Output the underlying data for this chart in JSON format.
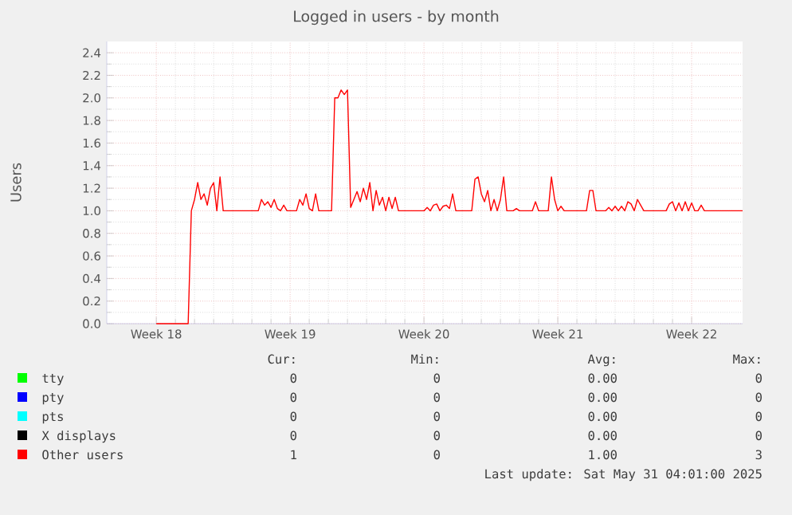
{
  "chart_data": {
    "type": "line",
    "title": "Logged in users - by month",
    "ylabel": "Users",
    "categories": [
      "Week 18",
      null,
      null,
      null,
      null,
      null,
      null,
      null,
      null,
      null,
      null,
      null,
      null,
      null,
      null,
      null,
      null,
      null,
      null,
      null,
      null,
      null,
      null,
      null,
      null,
      null,
      null,
      null,
      null,
      null,
      null,
      null,
      null,
      null,
      null,
      null,
      null,
      null,
      null,
      null,
      null,
      null,
      "Week 19",
      null,
      null,
      null,
      null,
      null,
      null,
      null,
      null,
      null,
      null,
      null,
      null,
      null,
      null,
      null,
      null,
      null,
      null,
      null,
      null,
      null,
      null,
      null,
      null,
      null,
      null,
      null,
      null,
      null,
      null,
      null,
      null,
      null,
      null,
      null,
      null,
      null,
      null,
      null,
      null,
      null,
      "Week 20",
      null,
      null,
      null,
      null,
      null,
      null,
      null,
      null,
      null,
      null,
      null,
      null,
      null,
      null,
      null,
      null,
      null,
      null,
      null,
      null,
      null,
      null,
      null,
      null,
      null,
      null,
      null,
      null,
      null,
      null,
      null,
      null,
      null,
      null,
      null,
      null,
      null,
      null,
      null,
      null,
      null,
      "Week 21",
      null,
      null,
      null,
      null,
      null,
      null,
      null,
      null,
      null,
      null,
      null,
      null,
      null,
      null,
      null,
      null,
      null,
      null,
      null,
      null,
      null,
      null,
      null,
      null,
      null,
      null,
      null,
      null,
      null,
      null,
      null,
      null,
      null,
      null,
      null,
      null,
      null,
      null,
      null,
      null,
      null,
      "Week 22",
      null,
      null,
      null,
      null,
      null,
      null,
      null,
      null,
      null,
      null,
      null,
      null,
      null,
      null,
      null,
      null
    ],
    "ylim": [
      0,
      2.5
    ],
    "yticks": [
      {
        "value": 0,
        "label": "0.0"
      },
      {
        "value": 0.2,
        "label": "0.2"
      },
      {
        "value": 0.4,
        "label": "0.4"
      },
      {
        "value": 0.6,
        "label": "0.6"
      },
      {
        "value": 0.8,
        "label": "0.8"
      },
      {
        "value": 1.0,
        "label": "1.0"
      },
      {
        "value": 1.2,
        "label": "1.2"
      },
      {
        "value": 1.4,
        "label": "1.4"
      },
      {
        "value": 1.6,
        "label": "1.6"
      },
      {
        "value": 1.8,
        "label": "1.8"
      },
      {
        "value": 2.0,
        "label": "2.0"
      },
      {
        "value": 2.2,
        "label": "2.2"
      },
      {
        "value": 2.4,
        "label": "2.4"
      }
    ],
    "grid": true,
    "legend": "bottom",
    "marker": "none",
    "line_style": "solid",
    "series": [
      {
        "name": "tty",
        "color": "#00ff00",
        "values": [
          null,
          null,
          null,
          null,
          null,
          null,
          null,
          null,
          null,
          null,
          null,
          null,
          null,
          null,
          null,
          null,
          null,
          null,
          null,
          null,
          null,
          null,
          null,
          null,
          null,
          null,
          null,
          null,
          null,
          null,
          null,
          null,
          null,
          null,
          null,
          null,
          null,
          null,
          null,
          null,
          null,
          null,
          null,
          null,
          null,
          null,
          null,
          null,
          null,
          null,
          null,
          null,
          null,
          null,
          null,
          null,
          null,
          null,
          null,
          null,
          null,
          null,
          null,
          null,
          null,
          null,
          null,
          null,
          null,
          null,
          null,
          null,
          null,
          null,
          null,
          null,
          null,
          null,
          null,
          null,
          null,
          null,
          null,
          null,
          null,
          null,
          null,
          null,
          null,
          null,
          null,
          null,
          null,
          null,
          null,
          null,
          null,
          null,
          null,
          null,
          null,
          null,
          null,
          null,
          null,
          null,
          null,
          null,
          null,
          null,
          null,
          null,
          null,
          null,
          null,
          null,
          null,
          null,
          null,
          null,
          null,
          null,
          null,
          null,
          null,
          null,
          null,
          null,
          null,
          null,
          null,
          null,
          null,
          null,
          null,
          null,
          null,
          null,
          null,
          null,
          null,
          null,
          null,
          null,
          null,
          null,
          null,
          null,
          null,
          null,
          null,
          null,
          null,
          null,
          null,
          null,
          null,
          null,
          null,
          null,
          null,
          null,
          null,
          null,
          null,
          null,
          null,
          null,
          null,
          null,
          null,
          null,
          null,
          null,
          null,
          null,
          null,
          null,
          null,
          null,
          null,
          null,
          null,
          null,
          null
        ]
      },
      {
        "name": "pty",
        "color": "#0000ff",
        "values": [
          null,
          null,
          null,
          null,
          null,
          null,
          null,
          null,
          null,
          null,
          null,
          null,
          null,
          null,
          null,
          null,
          null,
          null,
          null,
          null,
          null,
          null,
          null,
          null,
          null,
          null,
          null,
          null,
          null,
          null,
          null,
          null,
          null,
          null,
          null,
          null,
          null,
          null,
          null,
          null,
          null,
          null,
          null,
          null,
          null,
          null,
          null,
          null,
          null,
          null,
          null,
          null,
          null,
          null,
          null,
          null,
          null,
          null,
          null,
          null,
          null,
          null,
          null,
          null,
          null,
          null,
          null,
          null,
          null,
          null,
          null,
          null,
          null,
          null,
          null,
          null,
          null,
          null,
          null,
          null,
          null,
          null,
          null,
          null,
          null,
          null,
          null,
          null,
          null,
          null,
          null,
          null,
          null,
          null,
          null,
          null,
          null,
          null,
          null,
          null,
          null,
          null,
          null,
          null,
          null,
          null,
          null,
          null,
          null,
          null,
          null,
          null,
          null,
          null,
          null,
          null,
          null,
          null,
          null,
          null,
          null,
          null,
          null,
          null,
          null,
          null,
          null,
          null,
          null,
          null,
          null,
          null,
          null,
          null,
          null,
          null,
          null,
          null,
          null,
          null,
          null,
          null,
          null,
          null,
          null,
          null,
          null,
          null,
          null,
          null,
          null,
          null,
          null,
          null,
          null,
          null,
          null,
          null,
          null,
          null,
          null,
          null,
          null,
          null,
          null,
          null,
          null,
          null,
          null,
          null,
          null,
          null,
          null,
          null,
          null,
          null,
          null,
          null,
          null,
          null,
          null,
          null,
          null,
          null,
          null
        ]
      },
      {
        "name": "pts",
        "color": "#00ffff",
        "values": [
          null,
          null,
          null,
          null,
          null,
          null,
          null,
          null,
          null,
          null,
          null,
          null,
          null,
          null,
          null,
          null,
          null,
          null,
          null,
          null,
          null,
          null,
          null,
          null,
          null,
          null,
          null,
          null,
          null,
          null,
          null,
          null,
          null,
          null,
          null,
          null,
          null,
          null,
          null,
          null,
          null,
          null,
          null,
          null,
          null,
          null,
          null,
          null,
          null,
          null,
          null,
          null,
          null,
          null,
          null,
          null,
          null,
          null,
          null,
          null,
          null,
          null,
          null,
          null,
          null,
          null,
          null,
          null,
          null,
          null,
          null,
          null,
          null,
          null,
          null,
          null,
          null,
          null,
          null,
          null,
          null,
          null,
          null,
          null,
          null,
          null,
          null,
          null,
          null,
          null,
          null,
          null,
          null,
          null,
          null,
          null,
          null,
          null,
          null,
          null,
          null,
          null,
          null,
          null,
          null,
          null,
          null,
          null,
          null,
          null,
          null,
          null,
          null,
          null,
          null,
          null,
          null,
          null,
          null,
          null,
          null,
          null,
          null,
          null,
          null,
          null,
          null,
          null,
          null,
          null,
          null,
          null,
          null,
          null,
          null,
          null,
          null,
          null,
          null,
          null,
          null,
          null,
          null,
          null,
          null,
          null,
          null,
          null,
          null,
          null,
          null,
          null,
          null,
          null,
          null,
          null,
          null,
          null,
          null,
          null,
          null,
          null,
          null,
          null,
          null,
          null,
          null,
          null,
          null,
          null,
          null,
          null,
          null,
          null,
          null,
          null,
          null,
          null,
          null,
          null,
          null,
          null,
          null,
          null,
          null
        ]
      },
      {
        "name": "X displays",
        "color": "#000000",
        "values": [
          null,
          null,
          null,
          null,
          null,
          null,
          null,
          null,
          null,
          null,
          null,
          null,
          null,
          null,
          null,
          null,
          null,
          null,
          null,
          null,
          null,
          null,
          null,
          null,
          null,
          null,
          null,
          null,
          null,
          null,
          null,
          null,
          null,
          null,
          null,
          null,
          null,
          null,
          null,
          null,
          null,
          null,
          null,
          null,
          null,
          null,
          null,
          null,
          null,
          null,
          null,
          null,
          null,
          null,
          null,
          null,
          null,
          null,
          null,
          null,
          null,
          null,
          null,
          null,
          null,
          null,
          null,
          null,
          null,
          null,
          null,
          null,
          null,
          null,
          null,
          null,
          null,
          null,
          null,
          null,
          null,
          null,
          null,
          null,
          null,
          null,
          null,
          null,
          null,
          null,
          null,
          null,
          null,
          null,
          null,
          null,
          null,
          null,
          null,
          null,
          null,
          null,
          null,
          null,
          null,
          null,
          null,
          null,
          null,
          null,
          null,
          null,
          null,
          null,
          null,
          null,
          null,
          null,
          null,
          null,
          null,
          null,
          null,
          null,
          null,
          null,
          null,
          null,
          null,
          null,
          null,
          null,
          null,
          null,
          null,
          null,
          null,
          null,
          null,
          null,
          null,
          null,
          null,
          null,
          null,
          null,
          null,
          null,
          null,
          null,
          null,
          null,
          null,
          null,
          null,
          null,
          null,
          null,
          null,
          null,
          null,
          null,
          null,
          null,
          null,
          null,
          null,
          null,
          null,
          null,
          null,
          null,
          null,
          null,
          null,
          null,
          null,
          null,
          null,
          null,
          null,
          null,
          null,
          null,
          null
        ]
      },
      {
        "name": "Other users",
        "color": "#ff0000",
        "values": [
          0,
          0,
          0,
          0,
          0,
          0,
          0,
          0,
          0,
          0,
          0,
          1.0,
          1.1,
          1.25,
          1.1,
          1.15,
          1.05,
          1.2,
          1.25,
          1.0,
          1.3,
          1.0,
          1.0,
          1.0,
          1.0,
          1.0,
          1.0,
          1.0,
          1.0,
          1.0,
          1.0,
          1.0,
          1.0,
          1.1,
          1.05,
          1.08,
          1.03,
          1.1,
          1.02,
          1.0,
          1.05,
          1.0,
          1.0,
          1.0,
          1.0,
          1.1,
          1.05,
          1.15,
          1.02,
          1.0,
          1.15,
          1.0,
          1.0,
          1.0,
          1.0,
          1.0,
          2.0,
          2.0,
          2.07,
          2.03,
          2.07,
          1.03,
          1.1,
          1.17,
          1.08,
          1.2,
          1.1,
          1.25,
          1.0,
          1.18,
          1.05,
          1.12,
          1.0,
          1.12,
          1.02,
          1.12,
          1.0,
          1.0,
          1.0,
          1.0,
          1.0,
          1.0,
          1.0,
          1.0,
          1.0,
          1.03,
          1.0,
          1.05,
          1.06,
          1.0,
          1.04,
          1.05,
          1.02,
          1.15,
          1.0,
          1.0,
          1.0,
          1.0,
          1.0,
          1.0,
          1.28,
          1.3,
          1.15,
          1.08,
          1.18,
          1.0,
          1.1,
          1.0,
          1.1,
          1.3,
          1.0,
          1.0,
          1.0,
          1.02,
          1.0,
          1.0,
          1.0,
          1.0,
          1.0,
          1.08,
          1.0,
          1.0,
          1.0,
          1.0,
          1.3,
          1.1,
          1.0,
          1.04,
          1.0,
          1.0,
          1.0,
          1.0,
          1.0,
          1.0,
          1.0,
          1.0,
          1.18,
          1.18,
          1.0,
          1.0,
          1.0,
          1.0,
          1.03,
          1.0,
          1.04,
          1.0,
          1.04,
          1.0,
          1.08,
          1.06,
          1.0,
          1.1,
          1.05,
          1.0,
          1.0,
          1.0,
          1.0,
          1.0,
          1.0,
          1.0,
          1.0,
          1.06,
          1.08,
          1.0,
          1.07,
          1.0,
          1.08,
          1.0,
          1.07,
          1.0,
          1.0,
          1.05,
          1.0,
          1.0,
          1.0,
          1.0,
          1.0,
          1.0,
          1.0,
          1.0,
          1.0,
          1.0,
          1.0,
          1.0,
          1.0
        ]
      }
    ],
    "annotations": [
      "Cur:",
      "Min:",
      "Avg:",
      "Max:",
      "0",
      "0",
      "0.00",
      "0",
      "0",
      "0",
      "0.00",
      "0",
      "0",
      "0",
      "0.00",
      "0",
      "0",
      "0",
      "0.00",
      "0",
      "1",
      "0",
      "1.00",
      "3",
      "Last update: Sat May 31 04:01:00 2025"
    ]
  }
}
